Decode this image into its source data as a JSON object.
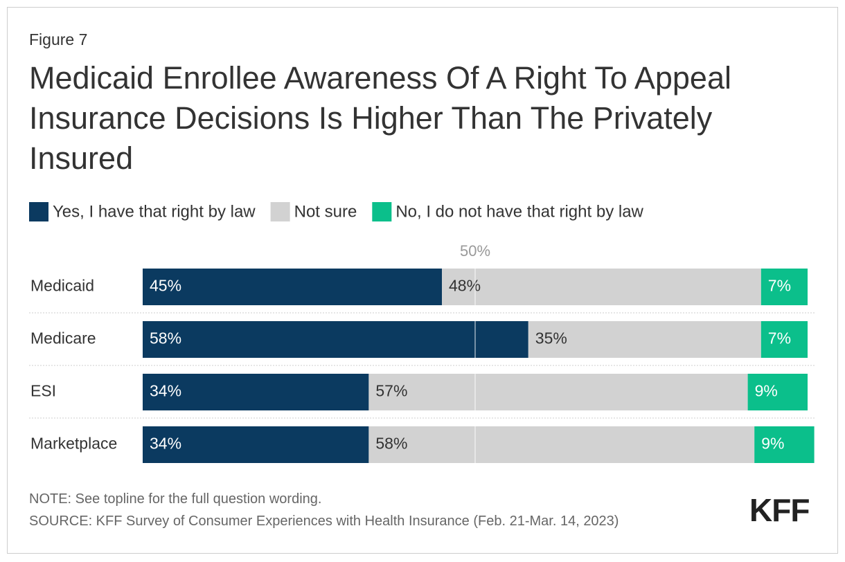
{
  "figure_label": "Figure 7",
  "chart_data": {
    "type": "bar",
    "orientation": "horizontal",
    "stacked": true,
    "title": "Medicaid Enrollee Awareness Of A Right To Appeal Insurance Decisions Is Higher Than The Privately Insured",
    "categories": [
      "Medicaid",
      "Medicare",
      "ESI",
      "Marketplace"
    ],
    "series": [
      {
        "name": "Yes, I have that right by law",
        "color": "#0b3a60",
        "label_color": "#ffffff",
        "values": [
          45,
          58,
          34,
          34
        ],
        "value_labels": [
          "45%",
          "58%",
          "34%",
          "34%"
        ]
      },
      {
        "name": "Not sure",
        "color": "#d2d2d2",
        "label_color": "#333333",
        "values": [
          48,
          35,
          57,
          58
        ],
        "value_labels": [
          "48%",
          "35%",
          "57%",
          "58%"
        ]
      },
      {
        "name": "No, I do not have that right by law",
        "color": "#0bbf8b",
        "label_color": "#ffffff",
        "values": [
          7,
          7,
          9,
          9
        ],
        "value_labels": [
          "7%",
          "7%",
          "9%",
          "9%"
        ]
      }
    ],
    "xlim": [
      0,
      100
    ],
    "xticks": [
      {
        "value": 50,
        "label": "50%"
      }
    ]
  },
  "notes": [
    "NOTE: See topline for the full question wording.",
    "SOURCE: KFF Survey of Consumer Experiences with Health Insurance (Feb. 21-Mar. 14, 2023)"
  ],
  "logo": "KFF"
}
